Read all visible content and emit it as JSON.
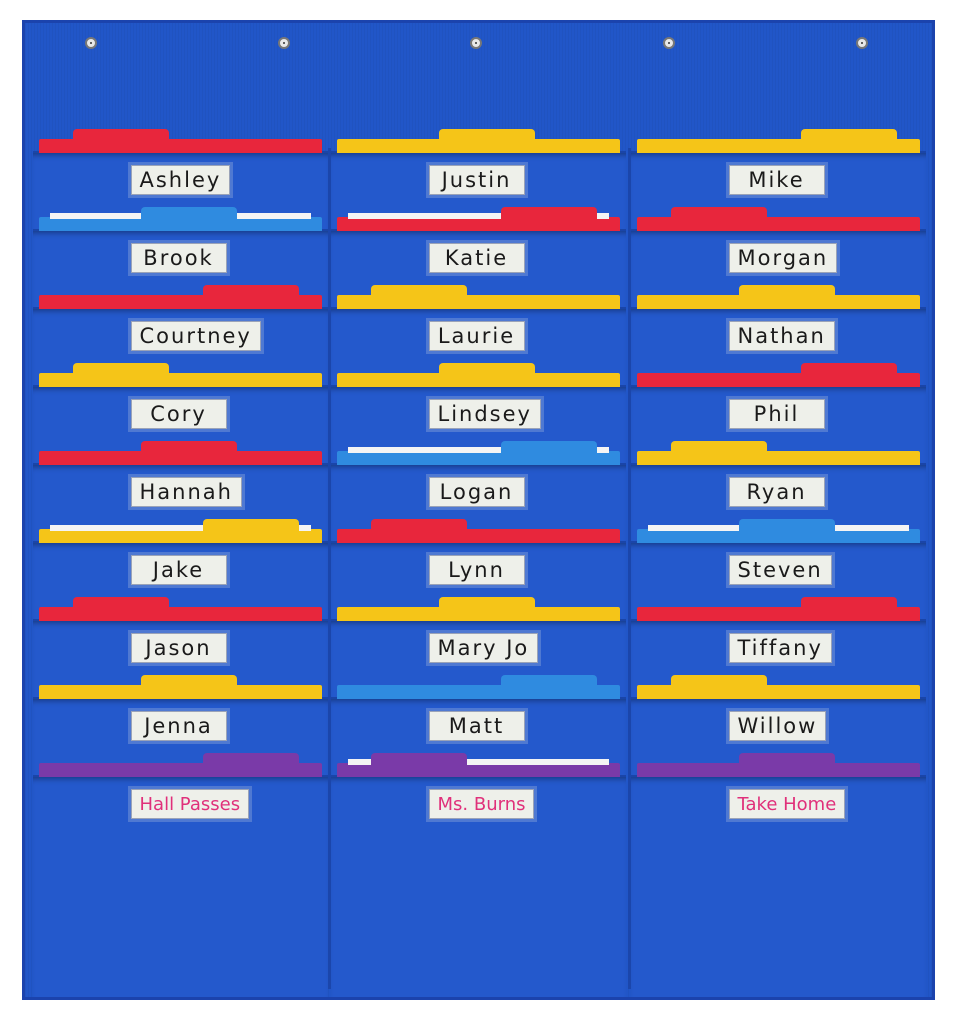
{
  "folder_colors": {
    "red": "#e8263c",
    "yellow": "#f5c518",
    "blue": "#2f8be0",
    "purple": "#7a3aa8"
  },
  "fabric_color": "#2156c8",
  "label_ink_special": "#e0307a",
  "columns": [
    {
      "names": [
        "Ashley",
        "Brook",
        "Courtney",
        "Cory",
        "Hannah",
        "Jake",
        "Jason",
        "Jenna",
        "Hall Passes"
      ],
      "folders": [
        {
          "color": "red",
          "paper": false
        },
        {
          "color": "blue",
          "paper": true
        },
        {
          "color": "red",
          "paper": false
        },
        {
          "color": "yellow",
          "paper": false
        },
        {
          "color": "red",
          "paper": false
        },
        {
          "color": "yellow",
          "paper": true
        },
        {
          "color": "red",
          "paper": false
        },
        {
          "color": "yellow",
          "paper": false
        },
        {
          "color": "purple",
          "paper": false
        }
      ]
    },
    {
      "names": [
        "Justin",
        "Katie",
        "Laurie",
        "Lindsey",
        "Logan",
        "Lynn",
        "Mary Jo",
        "Matt",
        "Ms. Burns"
      ],
      "folders": [
        {
          "color": "yellow",
          "paper": false
        },
        {
          "color": "red",
          "paper": true
        },
        {
          "color": "yellow",
          "paper": false
        },
        {
          "color": "yellow",
          "paper": false
        },
        {
          "color": "blue",
          "paper": true
        },
        {
          "color": "red",
          "paper": false
        },
        {
          "color": "yellow",
          "paper": false
        },
        {
          "color": "blue",
          "paper": false
        },
        {
          "color": "purple",
          "paper": true
        }
      ]
    },
    {
      "names": [
        "Mike",
        "Morgan",
        "Nathan",
        "Phil",
        "Ryan",
        "Steven",
        "Tiffany",
        "Willow",
        "Take Home"
      ],
      "folders": [
        {
          "color": "yellow",
          "paper": false
        },
        {
          "color": "red",
          "paper": false
        },
        {
          "color": "yellow",
          "paper": false
        },
        {
          "color": "red",
          "paper": false
        },
        {
          "color": "yellow",
          "paper": false
        },
        {
          "color": "blue",
          "paper": true
        },
        {
          "color": "red",
          "paper": false
        },
        {
          "color": "yellow",
          "paper": false
        },
        {
          "color": "purple",
          "paper": false
        }
      ]
    }
  ]
}
